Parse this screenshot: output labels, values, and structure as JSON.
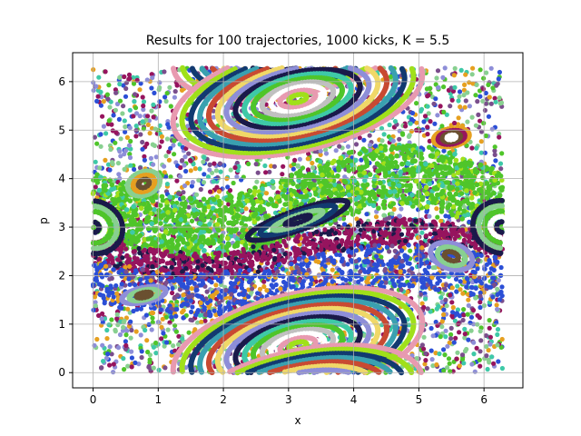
{
  "chart_data": {
    "type": "scatter",
    "title": "Results for 100 trajectories, 1000 kicks, K = 5.5",
    "xlabel": "x",
    "ylabel": "p",
    "xlim": [
      -0.314,
      6.597
    ],
    "ylim": [
      -0.314,
      6.597
    ],
    "x_ticks": [
      "0",
      "1",
      "2",
      "3",
      "4",
      "5",
      "6"
    ],
    "y_ticks": [
      "0",
      "1",
      "2",
      "3",
      "4",
      "5",
      "6"
    ],
    "grid": true,
    "legend": "none",
    "n_trajectories": 100,
    "n_kicks": 1000,
    "K": 5.5,
    "palette": [
      "#2b4fd6",
      "#7a4e8c",
      "#3ec9a7",
      "#4fc52a",
      "#96145e",
      "#e6a020",
      "#1a1a4a",
      "#a0e01a",
      "#e89ab0",
      "#c84a32",
      "#f0d868",
      "#3aa0b0",
      "#8e8ed8",
      "#6a5030",
      "#88d090",
      "#123a70",
      "#c0c0c0",
      "#ffffff"
    ],
    "series": [
      {
        "region": "chaotic sea",
        "colors": [
          0,
          1,
          2,
          3,
          4,
          5,
          14,
          12
        ]
      },
      {
        "region": "island x=3.14 p=0.6",
        "colors": [
          8,
          7,
          15,
          11,
          9,
          10,
          12,
          6,
          2,
          3,
          16,
          17
        ]
      },
      {
        "region": "island x=3.14 p=5.7",
        "colors": [
          8,
          7,
          15,
          11,
          9,
          10,
          12,
          6,
          2,
          3,
          16,
          17
        ]
      },
      {
        "region": "island x=0 p=3.14",
        "colors": [
          6,
          14,
          3,
          17
        ]
      },
      {
        "region": "island x=3.14 p=3.14",
        "colors": [
          6,
          15,
          14
        ]
      },
      {
        "region": "island x=5.5 p=4.85",
        "colors": [
          5,
          4,
          13,
          17
        ]
      },
      {
        "region": "island x=0.78 p=3.9",
        "colors": [
          14,
          5,
          13
        ]
      },
      {
        "region": "island x=5.5 p=2.4",
        "colors": [
          12,
          14,
          13
        ]
      },
      {
        "region": "island x=0.78 p=1.6",
        "colors": [
          12,
          14,
          13
        ]
      }
    ]
  }
}
